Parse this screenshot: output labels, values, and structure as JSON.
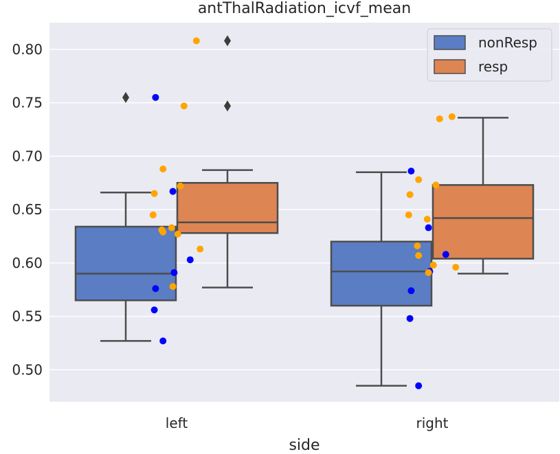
{
  "chart_data": {
    "type": "box",
    "title": "antThalRadiation_icvf_mean",
    "xlabel": "side",
    "ylabel": "",
    "categories": [
      "left",
      "right"
    ],
    "ylim": [
      0.47,
      0.825
    ],
    "yticks": [
      0.5,
      0.55,
      0.6,
      0.65,
      0.7,
      0.75,
      0.8
    ],
    "ytick_labels": [
      "0.50",
      "0.55",
      "0.60",
      "0.65",
      "0.70",
      "0.75",
      "0.80"
    ],
    "grid": true,
    "legend_position": "top-right",
    "colors": {
      "background": "#eaeaf2",
      "grid": "#ffffff",
      "box_edge": "#4d4d4d",
      "outlier": "#3d3d3d"
    },
    "series": [
      {
        "name": "nonResp",
        "box_color": "#5a7dc4",
        "point_color": "#0000ff",
        "boxes": [
          {
            "category": "left",
            "whislo": 0.527,
            "q1": 0.565,
            "med": 0.59,
            "q3": 0.634,
            "whishi": 0.666,
            "fliers": [
              0.755
            ]
          },
          {
            "category": "right",
            "whislo": 0.485,
            "q1": 0.56,
            "med": 0.592,
            "q3": 0.62,
            "whishi": 0.685,
            "fliers": []
          }
        ],
        "points": [
          {
            "category": "left",
            "values": [
              0.755,
              0.667,
              0.603,
              0.591,
              0.576,
              0.556,
              0.527
            ]
          },
          {
            "category": "right",
            "values": [
              0.686,
              0.633,
              0.608,
              0.592,
              0.574,
              0.548,
              0.485
            ]
          }
        ]
      },
      {
        "name": "resp",
        "box_color": "#dd8553",
        "point_color": "#ffa500",
        "boxes": [
          {
            "category": "left",
            "whislo": 0.577,
            "q1": 0.628,
            "med": 0.638,
            "q3": 0.675,
            "whishi": 0.687,
            "fliers": [
              0.808,
              0.747
            ]
          },
          {
            "category": "right",
            "whislo": 0.59,
            "q1": 0.604,
            "med": 0.642,
            "q3": 0.673,
            "whishi": 0.736,
            "fliers": []
          }
        ],
        "points": [
          {
            "category": "left",
            "values": [
              0.808,
              0.747,
              0.688,
              0.672,
              0.665,
              0.645,
              0.633,
              0.631,
              0.629,
              0.627,
              0.613,
              0.578
            ]
          },
          {
            "category": "right",
            "values": [
              0.737,
              0.735,
              0.678,
              0.673,
              0.664,
              0.645,
              0.641,
              0.616,
              0.607,
              0.598,
              0.596,
              0.591
            ]
          }
        ]
      }
    ]
  }
}
